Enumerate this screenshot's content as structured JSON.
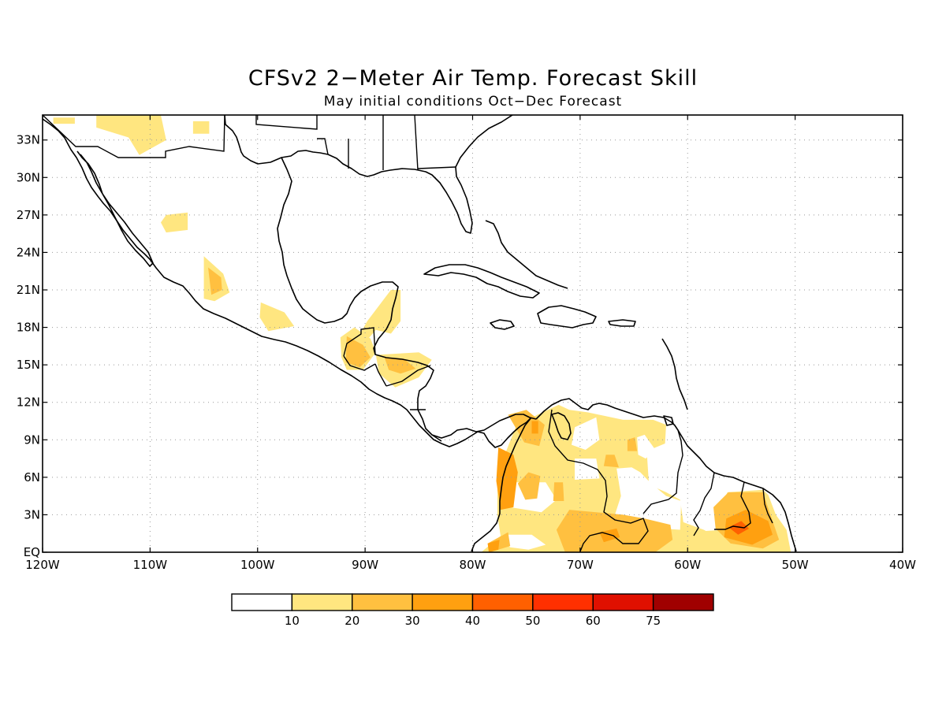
{
  "title": "CFSv2 2−Meter Air Temp. Forecast Skill",
  "subtitle": "May initial conditions   Oct−Dec Forecast",
  "map": {
    "lon_range": [
      -120,
      -40
    ],
    "lat_range": [
      0,
      35
    ],
    "grid": true,
    "lat_ticks": [
      {
        "v": 33,
        "label": "33N"
      },
      {
        "v": 30,
        "label": "30N"
      },
      {
        "v": 27,
        "label": "27N"
      },
      {
        "v": 24,
        "label": "24N"
      },
      {
        "v": 21,
        "label": "21N"
      },
      {
        "v": 18,
        "label": "18N"
      },
      {
        "v": 15,
        "label": "15N"
      },
      {
        "v": 12,
        "label": "12N"
      },
      {
        "v": 9,
        "label": "9N"
      },
      {
        "v": 6,
        "label": "6N"
      },
      {
        "v": 3,
        "label": "3N"
      },
      {
        "v": 0,
        "label": "EQ"
      }
    ],
    "lon_ticks": [
      {
        "v": -120,
        "label": "120W"
      },
      {
        "v": -110,
        "label": "110W"
      },
      {
        "v": -100,
        "label": "100W"
      },
      {
        "v": -90,
        "label": "90W"
      },
      {
        "v": -80,
        "label": "80W"
      },
      {
        "v": -70,
        "label": "70W"
      },
      {
        "v": -60,
        "label": "60W"
      },
      {
        "v": -50,
        "label": "50W"
      },
      {
        "v": -40,
        "label": "40W"
      }
    ]
  },
  "colorbar": {
    "colors": [
      "#ffffff",
      "#ffe680",
      "#ffc040",
      "#ffa010",
      "#ff6000",
      "#ff3000",
      "#e01000",
      "#a00000"
    ],
    "labels": [
      "10",
      "20",
      "30",
      "40",
      "50",
      "60",
      "75"
    ]
  },
  "skill_regions": [
    {
      "level": 1,
      "points": [
        [
          -119,
          34.8
        ],
        [
          -117,
          34.8
        ],
        [
          -117,
          34.3
        ],
        [
          -119,
          34.3
        ]
      ]
    },
    {
      "level": 1,
      "points": [
        [
          -115,
          35
        ],
        [
          -109,
          35
        ],
        [
          -108.5,
          33
        ],
        [
          -111,
          31.8
        ],
        [
          -112,
          33.2
        ],
        [
          -115,
          34
        ]
      ]
    },
    {
      "level": 1,
      "points": [
        [
          -106,
          34.5
        ],
        [
          -104.5,
          34.5
        ],
        [
          -104.5,
          33.5
        ],
        [
          -106,
          33.5
        ]
      ]
    },
    {
      "level": 1,
      "points": [
        [
          -108.5,
          27
        ],
        [
          -106.5,
          27.2
        ],
        [
          -106.5,
          25.8
        ],
        [
          -108.5,
          25.6
        ],
        [
          -109,
          26.4
        ]
      ]
    },
    {
      "level": 1,
      "points": [
        [
          -105,
          23.7
        ],
        [
          -103.2,
          22.3
        ],
        [
          -102.6,
          20.8
        ],
        [
          -104,
          20.1
        ],
        [
          -105,
          20.3
        ]
      ]
    },
    {
      "level": 2,
      "points": [
        [
          -104.6,
          22.8
        ],
        [
          -103.4,
          22
        ],
        [
          -103.3,
          21
        ],
        [
          -104.3,
          20.6
        ]
      ]
    },
    {
      "level": 1,
      "points": [
        [
          -99.7,
          20
        ],
        [
          -97.5,
          19.2
        ],
        [
          -96.6,
          18.1
        ],
        [
          -99,
          17.7
        ],
        [
          -99.8,
          18.8
        ]
      ]
    },
    {
      "level": 1,
      "points": [
        [
          -87.6,
          21
        ],
        [
          -86.7,
          21
        ],
        [
          -86.7,
          18.5
        ],
        [
          -87.6,
          17.5
        ],
        [
          -89,
          17.8
        ],
        [
          -90.3,
          16.5
        ],
        [
          -91,
          16.7
        ],
        [
          -89.8,
          18.5
        ]
      ]
    },
    {
      "level": 1,
      "points": [
        [
          -92.3,
          17.2
        ],
        [
          -91,
          18
        ],
        [
          -89.5,
          17.1
        ],
        [
          -89,
          16
        ],
        [
          -90.2,
          14.6
        ],
        [
          -91.7,
          14.6
        ],
        [
          -92.2,
          15.6
        ]
      ]
    },
    {
      "level": 2,
      "points": [
        [
          -91.7,
          17.3
        ],
        [
          -90.2,
          16.6
        ],
        [
          -89.5,
          15.6
        ],
        [
          -90.5,
          14.8
        ],
        [
          -91.8,
          15.2
        ]
      ]
    },
    {
      "level": 1,
      "points": [
        [
          -89,
          15.8
        ],
        [
          -85,
          16
        ],
        [
          -83.8,
          15.4
        ],
        [
          -85,
          14
        ],
        [
          -87.2,
          13.2
        ],
        [
          -88.7,
          14.3
        ]
      ]
    },
    {
      "level": 2,
      "points": [
        [
          -88.2,
          15.6
        ],
        [
          -86.4,
          15.5
        ],
        [
          -85.3,
          14.7
        ],
        [
          -86.7,
          14.3
        ],
        [
          -87.8,
          14.6
        ]
      ]
    },
    {
      "level": 1,
      "points": [
        [
          -76,
          10
        ],
        [
          -74,
          11
        ],
        [
          -72,
          11.8
        ],
        [
          -71,
          11.4
        ],
        [
          -69.3,
          11.2
        ],
        [
          -66,
          10.6
        ],
        [
          -63.2,
          10.6
        ],
        [
          -62,
          10.2
        ],
        [
          -62.1,
          8.7
        ],
        [
          -63.8,
          8.1
        ],
        [
          -63.6,
          5.4
        ],
        [
          -62,
          4.8
        ],
        [
          -60.7,
          4.2
        ],
        [
          -60.4,
          2.4
        ],
        [
          -58.5,
          1.8
        ],
        [
          -57.2,
          3
        ],
        [
          -56.3,
          4.8
        ],
        [
          -53,
          5
        ],
        [
          -52.5,
          4.6
        ],
        [
          -51.8,
          3
        ],
        [
          -50.8,
          1.8
        ],
        [
          -50.4,
          0
        ],
        [
          -79.2,
          0
        ],
        [
          -77.4,
          1.3
        ],
        [
          -77.7,
          3
        ],
        [
          -77.7,
          5.5
        ],
        [
          -77.2,
          7.4
        ]
      ]
    },
    {
      "level": 0,
      "points": [
        [
          -70.5,
          10
        ],
        [
          -68.5,
          10.8
        ],
        [
          -68.2,
          9
        ],
        [
          -69.5,
          8.2
        ],
        [
          -70.8,
          8.6
        ]
      ]
    },
    {
      "level": 0,
      "points": [
        [
          -64.7,
          9.2
        ],
        [
          -64,
          9.4
        ],
        [
          -63,
          8.2
        ],
        [
          -63.9,
          7.5
        ],
        [
          -64.6,
          7.8
        ]
      ]
    },
    {
      "level": 0,
      "points": [
        [
          -66.6,
          6.7
        ],
        [
          -66.2,
          4.5
        ],
        [
          -66.8,
          2.9
        ],
        [
          -66,
          2.1
        ],
        [
          -60.7,
          1.8
        ],
        [
          -60.6,
          4.1
        ],
        [
          -62,
          4.5
        ],
        [
          -63.5,
          5.6
        ],
        [
          -64.4,
          6.4
        ],
        [
          -65.2,
          6.8
        ]
      ]
    },
    {
      "level": 0,
      "points": [
        [
          -57.2,
          5.1
        ],
        [
          -57,
          2.8
        ],
        [
          -56.6,
          1.8
        ],
        [
          -58.3,
          1.7
        ],
        [
          -59.3,
          2.2
        ],
        [
          -59.2,
          4.3
        ]
      ]
    },
    {
      "level": 0,
      "points": [
        [
          -76.2,
          5.6
        ],
        [
          -73.2,
          5.6
        ],
        [
          -72.2,
          4.2
        ],
        [
          -73.6,
          3.2
        ],
        [
          -76.5,
          3.6
        ],
        [
          -77,
          4.8
        ]
      ]
    },
    {
      "level": 0,
      "points": [
        [
          -77.1,
          1.4
        ],
        [
          -74.5,
          1.4
        ],
        [
          -73.2,
          0.6
        ],
        [
          -74.8,
          0.2
        ],
        [
          -76.5,
          0.4
        ],
        [
          -77.3,
          0.9
        ]
      ]
    },
    {
      "level": 0,
      "points": [
        [
          -70.5,
          7.5
        ],
        [
          -68.5,
          7.5
        ],
        [
          -68.2,
          5.9
        ],
        [
          -70.5,
          5.8
        ]
      ]
    },
    {
      "level": 2,
      "points": [
        [
          -76.7,
          11
        ],
        [
          -75,
          11.4
        ],
        [
          -73.3,
          10.2
        ],
        [
          -73.8,
          8.5
        ],
        [
          -75.2,
          8.8
        ]
      ]
    },
    {
      "level": 2,
      "points": [
        [
          -75.8,
          5.5
        ],
        [
          -74.8,
          6.4
        ],
        [
          -73.7,
          6.1
        ],
        [
          -74,
          4.3
        ],
        [
          -75.1,
          4.2
        ]
      ]
    },
    {
      "level": 2,
      "points": [
        [
          -72.4,
          5.6
        ],
        [
          -71.6,
          5.6
        ],
        [
          -71.5,
          4.1
        ],
        [
          -72.5,
          4.1
        ]
      ]
    },
    {
      "level": 2,
      "points": [
        [
          -67.6,
          7.8
        ],
        [
          -66.8,
          7.8
        ],
        [
          -66.4,
          6.8
        ],
        [
          -67.8,
          6.9
        ]
      ]
    },
    {
      "level": 2,
      "points": [
        [
          -65.6,
          9
        ],
        [
          -64.9,
          9.2
        ],
        [
          -64.7,
          8.1
        ],
        [
          -65.6,
          8.1
        ]
      ]
    },
    {
      "level": 2,
      "points": [
        [
          -71,
          3.4
        ],
        [
          -66,
          3
        ],
        [
          -64,
          2.7
        ],
        [
          -61.6,
          2.2
        ],
        [
          -61.4,
          1
        ],
        [
          -63,
          0
        ],
        [
          -71.4,
          0
        ],
        [
          -72.2,
          1.8
        ]
      ]
    },
    {
      "level": 2,
      "points": [
        [
          -78.6,
          0.7
        ],
        [
          -76.7,
          1.6
        ],
        [
          -76.5,
          0.5
        ],
        [
          -78.4,
          0
        ]
      ]
    },
    {
      "level": 3,
      "points": [
        [
          -77.6,
          8.4
        ],
        [
          -76.2,
          7.8
        ],
        [
          -75.8,
          6.4
        ],
        [
          -76.2,
          3.6
        ],
        [
          -77.4,
          3.4
        ],
        [
          -77.8,
          5.7
        ]
      ]
    },
    {
      "level": 3,
      "points": [
        [
          -74.5,
          10.5
        ],
        [
          -73.9,
          10.5
        ],
        [
          -73.9,
          9.5
        ],
        [
          -74.5,
          9.5
        ]
      ]
    },
    {
      "level": 3,
      "points": [
        [
          -68.2,
          1.6
        ],
        [
          -66.6,
          1.9
        ],
        [
          -66.3,
          1.2
        ],
        [
          -67.8,
          0.8
        ]
      ]
    },
    {
      "level": 3,
      "points": [
        [
          -78.6,
          0.7
        ],
        [
          -77.5,
          1
        ],
        [
          -77.6,
          0.2
        ],
        [
          -78.5,
          0
        ]
      ]
    },
    {
      "level": 2,
      "points": [
        [
          -56.2,
          4.8
        ],
        [
          -53,
          4.8
        ],
        [
          -52.3,
          3
        ],
        [
          -51.5,
          1
        ],
        [
          -53,
          0.3
        ],
        [
          -56,
          0.7
        ],
        [
          -57.4,
          1.9
        ],
        [
          -57.6,
          3.6
        ]
      ]
    },
    {
      "level": 3,
      "points": [
        [
          -56.4,
          2.7
        ],
        [
          -54.6,
          3.4
        ],
        [
          -52.5,
          2.5
        ],
        [
          -52.1,
          1.4
        ],
        [
          -54,
          0.6
        ],
        [
          -56.6,
          1.2
        ]
      ]
    },
    {
      "level": 4,
      "points": [
        [
          -56.2,
          2
        ],
        [
          -55,
          2.5
        ],
        [
          -54.3,
          1.9
        ],
        [
          -55.3,
          1.4
        ]
      ]
    }
  ]
}
